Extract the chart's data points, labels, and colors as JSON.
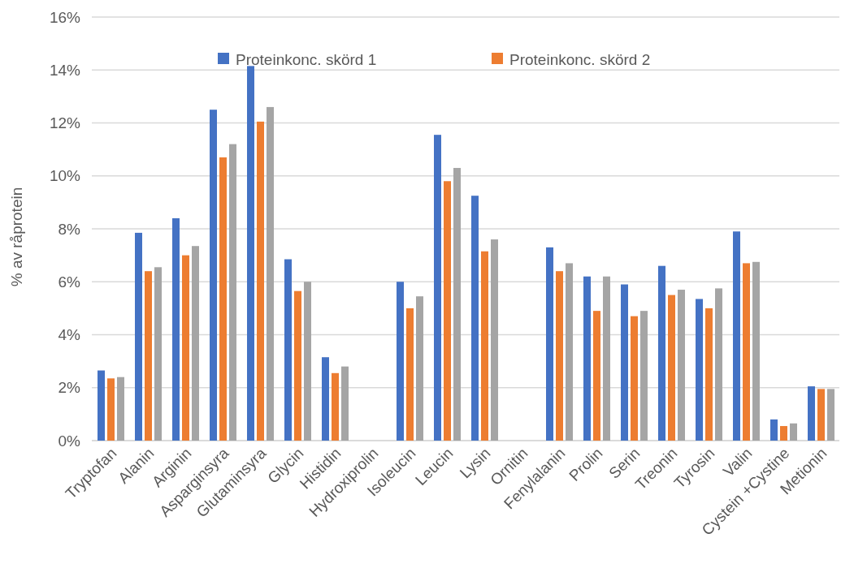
{
  "chart_data": {
    "type": "bar",
    "ylabel": "% av råprotein",
    "categories": [
      "Tryptofan",
      "Alanin",
      "Arginin",
      "Asparginsyra",
      "Glutaminsyra",
      "Glycin",
      "Histidin",
      "Hydroxiprolin",
      "Isoleucin",
      "Leucin",
      "Lysin",
      "Ornitin",
      "Fenylalanin",
      "Prolin",
      "Serin",
      "Treonin",
      "Tyrosin",
      "Valin",
      "Cystein +Cystine",
      "Metionin"
    ],
    "series": [
      {
        "name": "Proteinkonc. skörd 1",
        "color": "#4472c4",
        "values": [
          2.65,
          7.85,
          8.4,
          12.5,
          14.15,
          6.85,
          3.15,
          null,
          6.0,
          11.55,
          9.25,
          null,
          7.3,
          6.2,
          5.9,
          6.6,
          5.35,
          7.9,
          0.8,
          2.05
        ]
      },
      {
        "name": "Proteinkonc. skörd 2",
        "color": "#ed7d31",
        "values": [
          2.35,
          6.4,
          7.0,
          10.7,
          12.05,
          5.65,
          2.55,
          null,
          5.0,
          9.8,
          7.15,
          null,
          6.4,
          4.9,
          4.7,
          5.5,
          5.0,
          6.7,
          0.55,
          1.95
        ]
      },
      {
        "color": "#a5a5a5",
        "values": [
          2.4,
          6.55,
          7.35,
          11.2,
          12.6,
          6.0,
          2.8,
          null,
          5.45,
          10.3,
          7.6,
          null,
          6.7,
          6.2,
          4.9,
          5.7,
          5.75,
          6.75,
          0.65,
          1.95
        ]
      }
    ],
    "ylim": [
      0,
      16
    ],
    "yticks": [
      {
        "value": 0,
        "label": "0%"
      },
      {
        "value": 2,
        "label": "2%"
      },
      {
        "value": 4,
        "label": "4%"
      },
      {
        "value": 6,
        "label": "6%"
      },
      {
        "value": 8,
        "label": "8%"
      },
      {
        "value": 10,
        "label": "10%"
      },
      {
        "value": 12,
        "label": "12%"
      },
      {
        "value": 14,
        "label": "14%"
      },
      {
        "value": 16,
        "label": "16%"
      }
    ],
    "grid": "y",
    "legend": "top"
  }
}
